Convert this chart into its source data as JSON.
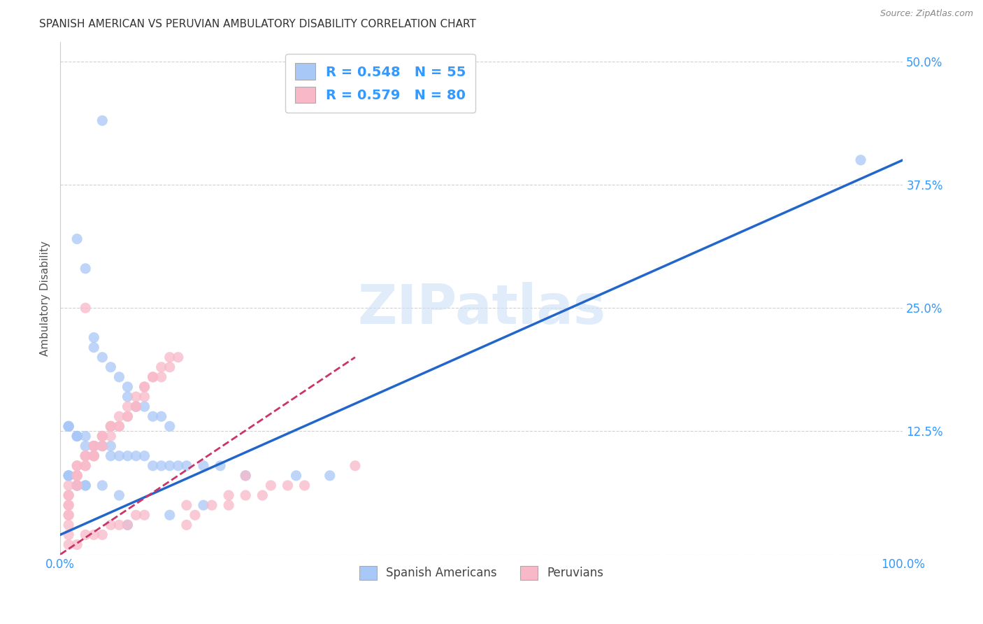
{
  "title": "SPANISH AMERICAN VS PERUVIAN AMBULATORY DISABILITY CORRELATION CHART",
  "source": "Source: ZipAtlas.com",
  "ylabel": "Ambulatory Disability",
  "watermark": "ZIPatlas",
  "xlim": [
    0.0,
    1.0
  ],
  "ylim": [
    0.0,
    0.52
  ],
  "xticks": [
    0.0,
    0.2,
    0.4,
    0.6,
    0.8,
    1.0
  ],
  "xticklabels": [
    "0.0%",
    "",
    "",
    "",
    "",
    "100.0%"
  ],
  "yticks": [
    0.0,
    0.125,
    0.25,
    0.375,
    0.5
  ],
  "yticklabels": [
    "",
    "12.5%",
    "25.0%",
    "37.5%",
    "50.0%"
  ],
  "blue_R": 0.548,
  "blue_N": 55,
  "pink_R": 0.579,
  "pink_N": 80,
  "blue_color": "#a8c8f8",
  "pink_color": "#f8b8c8",
  "blue_line_color": "#2266cc",
  "pink_line_color": "#cc3366",
  "axis_label_color": "#3399ff",
  "grid_color": "#cccccc",
  "background_color": "#ffffff",
  "blue_scatter_x": [
    0.05,
    0.02,
    0.03,
    0.04,
    0.04,
    0.05,
    0.06,
    0.07,
    0.08,
    0.08,
    0.09,
    0.1,
    0.11,
    0.12,
    0.13,
    0.01,
    0.01,
    0.01,
    0.02,
    0.02,
    0.02,
    0.03,
    0.03,
    0.04,
    0.05,
    0.06,
    0.07,
    0.08,
    0.09,
    0.1,
    0.11,
    0.12,
    0.13,
    0.14,
    0.15,
    0.17,
    0.19,
    0.22,
    0.28,
    0.32,
    0.01,
    0.01,
    0.01,
    0.02,
    0.02,
    0.03,
    0.03,
    0.04,
    0.05,
    0.06,
    0.07,
    0.08,
    0.13,
    0.17,
    0.95
  ],
  "blue_scatter_y": [
    0.44,
    0.32,
    0.29,
    0.22,
    0.21,
    0.2,
    0.19,
    0.18,
    0.17,
    0.16,
    0.15,
    0.15,
    0.14,
    0.14,
    0.13,
    0.13,
    0.13,
    0.13,
    0.12,
    0.12,
    0.12,
    0.12,
    0.11,
    0.11,
    0.11,
    0.1,
    0.1,
    0.1,
    0.1,
    0.1,
    0.09,
    0.09,
    0.09,
    0.09,
    0.09,
    0.09,
    0.09,
    0.08,
    0.08,
    0.08,
    0.08,
    0.08,
    0.08,
    0.07,
    0.07,
    0.07,
    0.07,
    0.11,
    0.07,
    0.11,
    0.06,
    0.03,
    0.04,
    0.05,
    0.4
  ],
  "pink_scatter_x": [
    0.01,
    0.01,
    0.01,
    0.01,
    0.01,
    0.01,
    0.01,
    0.01,
    0.01,
    0.02,
    0.02,
    0.02,
    0.02,
    0.02,
    0.02,
    0.02,
    0.03,
    0.03,
    0.03,
    0.03,
    0.03,
    0.04,
    0.04,
    0.04,
    0.04,
    0.04,
    0.04,
    0.04,
    0.05,
    0.05,
    0.05,
    0.05,
    0.05,
    0.06,
    0.06,
    0.06,
    0.06,
    0.07,
    0.07,
    0.07,
    0.08,
    0.08,
    0.08,
    0.09,
    0.09,
    0.09,
    0.1,
    0.1,
    0.1,
    0.11,
    0.11,
    0.12,
    0.12,
    0.13,
    0.13,
    0.14,
    0.15,
    0.16,
    0.18,
    0.2,
    0.22,
    0.24,
    0.27,
    0.29,
    0.01,
    0.02,
    0.03,
    0.04,
    0.05,
    0.06,
    0.07,
    0.08,
    0.09,
    0.1,
    0.15,
    0.2,
    0.25,
    0.03,
    0.22,
    0.35
  ],
  "pink_scatter_y": [
    0.02,
    0.03,
    0.04,
    0.04,
    0.05,
    0.05,
    0.06,
    0.06,
    0.07,
    0.07,
    0.07,
    0.08,
    0.08,
    0.08,
    0.09,
    0.09,
    0.09,
    0.09,
    0.1,
    0.1,
    0.1,
    0.1,
    0.1,
    0.1,
    0.1,
    0.11,
    0.11,
    0.11,
    0.11,
    0.11,
    0.12,
    0.12,
    0.12,
    0.12,
    0.13,
    0.13,
    0.13,
    0.13,
    0.13,
    0.14,
    0.14,
    0.14,
    0.15,
    0.15,
    0.15,
    0.16,
    0.16,
    0.17,
    0.17,
    0.18,
    0.18,
    0.18,
    0.19,
    0.19,
    0.2,
    0.2,
    0.03,
    0.04,
    0.05,
    0.05,
    0.06,
    0.06,
    0.07,
    0.07,
    0.01,
    0.01,
    0.02,
    0.02,
    0.02,
    0.03,
    0.03,
    0.03,
    0.04,
    0.04,
    0.05,
    0.06,
    0.07,
    0.25,
    0.08,
    0.09
  ],
  "blue_line_x0": 0.0,
  "blue_line_y0": 0.02,
  "blue_line_x1": 1.0,
  "blue_line_y1": 0.4,
  "pink_line_x0": 0.0,
  "pink_line_y0": 0.0,
  "pink_line_x1": 0.35,
  "pink_line_y1": 0.2
}
